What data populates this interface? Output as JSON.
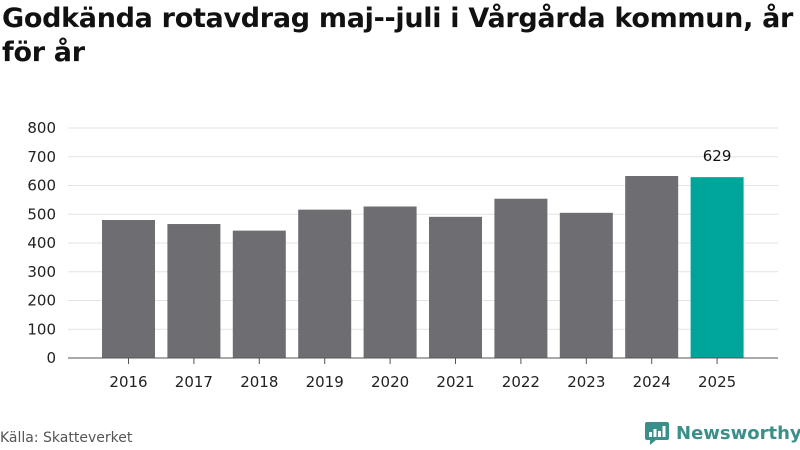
{
  "chart_data": {
    "type": "bar",
    "title": "Godkända rotavdrag maj--juli i Vårgårda kommun, år för år",
    "categories": [
      "2016",
      "2017",
      "2018",
      "2019",
      "2020",
      "2021",
      "2022",
      "2023",
      "2024",
      "2025"
    ],
    "values": [
      480,
      466,
      443,
      516,
      527,
      491,
      554,
      505,
      633,
      629
    ],
    "ylim": [
      0,
      800
    ],
    "yticks": [
      "0",
      "100",
      "200",
      "300",
      "400",
      "500",
      "600",
      "700",
      "800"
    ],
    "highlight_index": 9,
    "highlight_label": "629",
    "grid": true,
    "colors": {
      "bar": "#6e6d72",
      "highlight": "#00a59a",
      "grid": "#e3e3e3",
      "axis": "#555555"
    }
  },
  "footer": {
    "source": "Källa: Skatteverket",
    "brand": "Newsworthy",
    "brand_icon": "newsworthy-logo-icon"
  }
}
